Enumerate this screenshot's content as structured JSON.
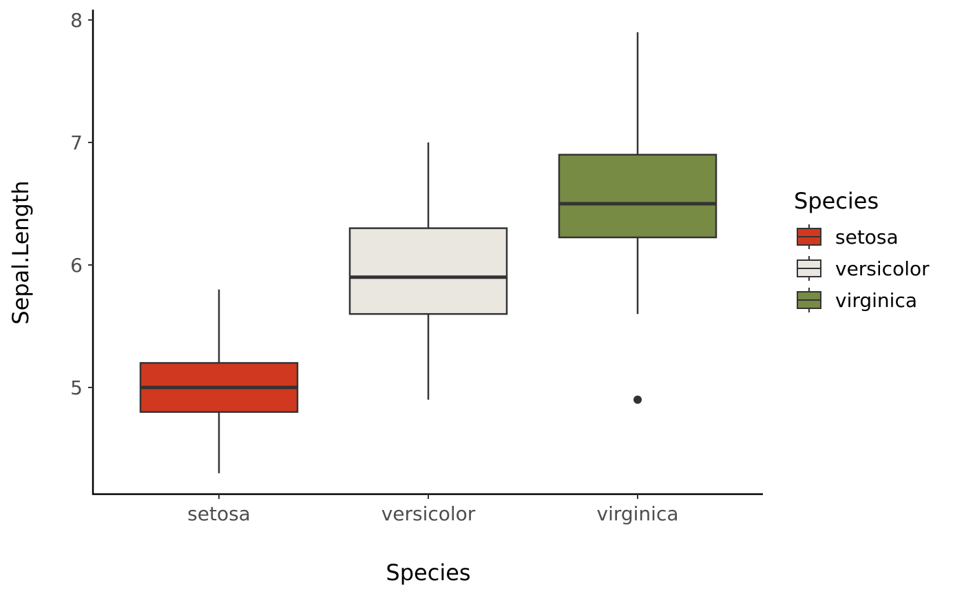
{
  "chart_data": {
    "type": "boxplot",
    "title": "",
    "xlabel": "Species",
    "ylabel": "Sepal.Length",
    "categories": [
      "setosa",
      "versicolor",
      "virginica"
    ],
    "yticks": [
      5,
      6,
      7,
      8
    ],
    "ylim": [
      4.1,
      8.06
    ],
    "grid": false,
    "legend": {
      "title": "Species",
      "position": "right",
      "entries": [
        "setosa",
        "versicolor",
        "virginica"
      ]
    },
    "series": [
      {
        "category": "setosa",
        "color": "#d0391f",
        "min": 4.3,
        "q1": 4.8,
        "median": 5.0,
        "q3": 5.2,
        "max": 5.8,
        "outliers": []
      },
      {
        "category": "versicolor",
        "color": "#eae7e1",
        "min": 4.9,
        "q1": 5.6,
        "median": 5.9,
        "q3": 6.3,
        "max": 7.0,
        "outliers": []
      },
      {
        "category": "virginica",
        "color": "#778b45",
        "min": 5.6,
        "q1": 6.225,
        "median": 6.5,
        "q3": 6.9,
        "max": 7.9,
        "outliers": [
          4.9
        ]
      }
    ]
  }
}
